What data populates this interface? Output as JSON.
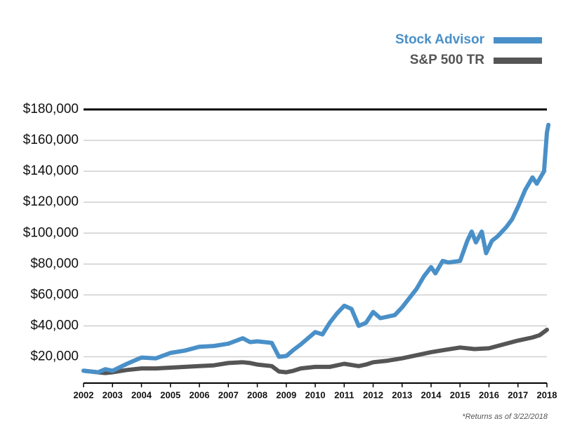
{
  "chart_data": {
    "type": "line",
    "xlim": [
      2002,
      2018
    ],
    "xticks": [
      2002,
      2003,
      2004,
      2005,
      2006,
      2007,
      2008,
      2009,
      2010,
      2011,
      2012,
      2013,
      2014,
      2015,
      2016,
      2017,
      2018
    ],
    "ylim": [
      3000,
      180000
    ],
    "yticks": [
      {
        "value": 20000,
        "label": "$20,000"
      },
      {
        "value": 40000,
        "label": "$40,000"
      },
      {
        "value": 60000,
        "label": "$60,000"
      },
      {
        "value": 80000,
        "label": "$80,000"
      },
      {
        "value": 100000,
        "label": "$100,000"
      },
      {
        "value": 120000,
        "label": "$120,000"
      },
      {
        "value": 140000,
        "label": "$140,000"
      },
      {
        "value": 160000,
        "label": "$160,000"
      },
      {
        "value": 180000,
        "label": "$180,000"
      }
    ],
    "grid": true,
    "legend": "top-right",
    "footnote": "*Returns as of 3/22/2018",
    "series": [
      {
        "name": "Stock Advisor",
        "color": "#4a90c8",
        "x": [
          2002,
          2002.5,
          2002.75,
          2003,
          2003.5,
          2004,
          2004.5,
          2005,
          2005.5,
          2006,
          2006.5,
          2007,
          2007.5,
          2007.75,
          2008,
          2008.5,
          2008.75,
          2009,
          2009.25,
          2009.5,
          2010,
          2010.25,
          2010.5,
          2010.75,
          2011,
          2011.25,
          2011.5,
          2011.75,
          2012,
          2012.25,
          2012.5,
          2012.75,
          2013,
          2013.25,
          2013.5,
          2013.75,
          2014,
          2014.15,
          2014.4,
          2014.6,
          2015,
          2015.25,
          2015.4,
          2015.55,
          2015.75,
          2015.9,
          2016.1,
          2016.3,
          2016.6,
          2016.8,
          2017,
          2017.25,
          2017.5,
          2017.65,
          2017.9,
          2018,
          2018.05
        ],
        "values": [
          11000,
          10000,
          12000,
          11000,
          15500,
          19500,
          19000,
          22500,
          24000,
          26500,
          27000,
          28500,
          32000,
          29500,
          30000,
          29000,
          20000,
          20500,
          24500,
          28000,
          36000,
          34500,
          42000,
          48000,
          53000,
          51000,
          40000,
          42000,
          49000,
          45000,
          46000,
          47000,
          52000,
          58000,
          64000,
          72000,
          78000,
          74000,
          82000,
          81000,
          82000,
          95000,
          101000,
          94000,
          101000,
          87000,
          95000,
          98000,
          104000,
          109000,
          117000,
          128000,
          136000,
          132000,
          140000,
          165000,
          170000
        ]
      },
      {
        "name": "S&P 500 TR",
        "color": "#555555",
        "x": [
          2002,
          2002.5,
          2002.75,
          2003,
          2003.5,
          2004,
          2004.5,
          2005,
          2005.5,
          2006,
          2006.5,
          2007,
          2007.5,
          2007.75,
          2008,
          2008.5,
          2008.75,
          2009,
          2009.25,
          2009.5,
          2010,
          2010.5,
          2011,
          2011.5,
          2011.75,
          2012,
          2012.5,
          2013,
          2013.5,
          2014,
          2014.5,
          2015,
          2015.5,
          2016,
          2016.5,
          2017,
          2017.5,
          2017.75,
          2018
        ],
        "values": [
          11000,
          10000,
          9500,
          10000,
          11500,
          12500,
          12500,
          13000,
          13500,
          14000,
          14500,
          16000,
          16500,
          16000,
          15000,
          14000,
          10500,
          10000,
          11000,
          12500,
          13500,
          13500,
          15500,
          14000,
          15000,
          16500,
          17500,
          19000,
          21000,
          23000,
          24500,
          26000,
          25000,
          25500,
          28000,
          30500,
          32500,
          34000,
          37500
        ]
      }
    ]
  }
}
